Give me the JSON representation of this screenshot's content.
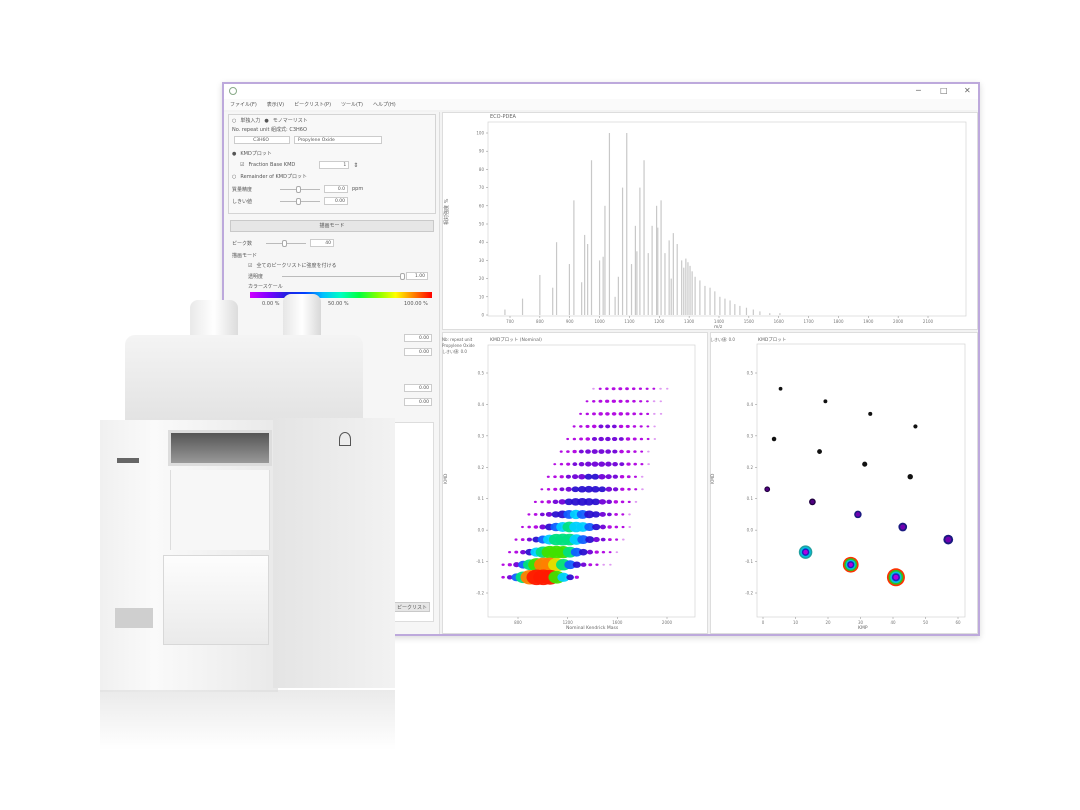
{
  "window": {
    "menu": [
      "ファイル(F)",
      "表示(V)",
      "ピークリスト(P)",
      "ツール(T)",
      "ヘルプ(H)"
    ],
    "controls": {
      "minimize": "─",
      "maximize": "□",
      "close": "✕"
    }
  },
  "left_panel": {
    "input_mode": {
      "option1": "単独入力",
      "option2": "モノマーリスト",
      "selected": "モノマーリスト"
    },
    "monomer_line": "No. repeat unit   組成式: C3H6O",
    "formula_select": "C3H6O",
    "monomer_select": "Propylene Oxide",
    "kmd_plot_radio": "KMDプロット",
    "fraction_base_checkbox": "Fraction Base KMD",
    "fraction_base_checked": true,
    "fraction_value": "1",
    "remainder_radio": "Remainder of KMDプロット",
    "mass_accuracy_label": "質量精度",
    "mass_accuracy_value": "0.0",
    "mass_accuracy_unit": "ppm",
    "threshold_label": "しきい値",
    "threshold_value": "0.00",
    "draw_button": "描画モード",
    "peak_count_label": "ピーク数",
    "peak_count_value": "40",
    "draw_mode_label": "描画モード",
    "all_peaks_checkbox": "全てのピークリストに強度を付ける",
    "transparency_label": "透明度",
    "transparency_value": "1.00",
    "colorscale_label": "カラースケール",
    "colorscale_ticks": [
      "0.00 %",
      "50.00 %",
      "100.00 %"
    ],
    "lower_values": [
      "0.00",
      "0.00",
      "0.00",
      "0.00"
    ],
    "lower_button": "ピークリスト"
  },
  "colors": {
    "window_border": "#bda9dc",
    "bar": "#c8c8c8"
  },
  "chart_data": [
    {
      "type": "bar",
      "title": "ECO-PDEA",
      "xlabel": "m/z",
      "ylabel": "相対強度 %",
      "xlim": [
        700,
        2100
      ],
      "ylim": [
        0,
        100
      ],
      "xticks": [
        700,
        800,
        900,
        1000,
        1100,
        1200,
        1300,
        1400,
        1500,
        1600,
        1700,
        1800,
        1900,
        2000,
        2100
      ],
      "yticks": [
        0,
        10,
        20,
        30,
        40,
        50,
        60,
        70,
        80,
        90,
        100
      ],
      "grid": false,
      "peaks": [
        [
          683,
          3
        ],
        [
          742,
          9
        ],
        [
          800,
          22
        ],
        [
          843,
          15
        ],
        [
          856,
          40
        ],
        [
          899,
          28
        ],
        [
          914,
          63
        ],
        [
          960,
          39
        ],
        [
          973,
          85
        ],
        [
          1012,
          32
        ],
        [
          1018,
          60
        ],
        [
          1033,
          100
        ],
        [
          1063,
          21
        ],
        [
          1077,
          70
        ],
        [
          1091,
          100
        ],
        [
          1107,
          28
        ],
        [
          1120,
          49
        ],
        [
          1135,
          70
        ],
        [
          1149,
          85
        ],
        [
          1163,
          34
        ],
        [
          1176,
          49
        ],
        [
          1191,
          60
        ],
        [
          1206,
          63
        ],
        [
          1219,
          34
        ],
        [
          1233,
          41
        ],
        [
          1247,
          45
        ],
        [
          1260,
          39
        ],
        [
          1275,
          30
        ],
        [
          1289,
          31
        ],
        [
          1303,
          27
        ],
        [
          1320,
          21
        ],
        [
          1336,
          19
        ],
        [
          1353,
          16
        ],
        [
          1370,
          15
        ],
        [
          1386,
          13
        ],
        [
          1403,
          10
        ],
        [
          1420,
          9
        ],
        [
          1437,
          8
        ],
        [
          1453,
          6
        ],
        [
          1470,
          5
        ],
        [
          1492,
          4
        ],
        [
          1515,
          3
        ],
        [
          1537,
          2
        ],
        [
          1570,
          1
        ],
        [
          1604,
          1
        ],
        [
          940,
          18
        ],
        [
          950,
          44
        ],
        [
          1000,
          30
        ],
        [
          1052,
          10
        ],
        [
          1125,
          35
        ],
        [
          1195,
          48
        ],
        [
          1240,
          20
        ],
        [
          1282,
          26
        ],
        [
          1296,
          29
        ],
        [
          1310,
          24
        ]
      ]
    },
    {
      "type": "scatter",
      "title": "KMDプロット (Nominal)",
      "side_labels": [
        "Nb: repeat unit",
        "Propylene Oxide",
        "しきい値: 0.0"
      ],
      "xlabel": "Nominal Kendrick Mass",
      "ylabel": "KMD",
      "xlim": [
        650,
        2100
      ],
      "ylim": [
        -0.25,
        0.55
      ],
      "xticks": [
        800,
        1200,
        1600,
        2000
      ],
      "yticks": [
        0.5,
        0.4,
        0.3,
        0.2,
        0.1,
        0.0,
        -0.1,
        -0.2
      ],
      "mass_step": 54,
      "rows": [
        {
          "kmd": 0.45,
          "start": 1408,
          "intensity": [
            3,
            5,
            8,
            10,
            10,
            9,
            8,
            6,
            5,
            4,
            3,
            2
          ]
        },
        {
          "kmd": 0.41,
          "start": 1356,
          "intensity": [
            4,
            7,
            10,
            12,
            12,
            11,
            10,
            8,
            6,
            4,
            3,
            2
          ]
        },
        {
          "kmd": 0.37,
          "start": 1304,
          "intensity": [
            4,
            7,
            10,
            13,
            14,
            14,
            13,
            11,
            9,
            7,
            5,
            3,
            2
          ]
        },
        {
          "kmd": 0.33,
          "start": 1252,
          "intensity": [
            5,
            8,
            11,
            14,
            16,
            16,
            15,
            13,
            11,
            8,
            6,
            4,
            2
          ]
        },
        {
          "kmd": 0.29,
          "start": 1200,
          "intensity": [
            4,
            7,
            10,
            14,
            17,
            19,
            19,
            18,
            16,
            13,
            10,
            7,
            4,
            2
          ]
        },
        {
          "kmd": 0.25,
          "start": 1148,
          "intensity": [
            5,
            8,
            12,
            16,
            20,
            22,
            22,
            20,
            17,
            14,
            10,
            7,
            4,
            2
          ]
        },
        {
          "kmd": 0.21,
          "start": 1096,
          "intensity": [
            4,
            7,
            11,
            15,
            20,
            24,
            26,
            26,
            24,
            20,
            16,
            12,
            8,
            5,
            3
          ]
        },
        {
          "kmd": 0.17,
          "start": 1044,
          "intensity": [
            5,
            8,
            12,
            17,
            23,
            28,
            31,
            31,
            28,
            23,
            18,
            13,
            9,
            5,
            3
          ]
        },
        {
          "kmd": 0.13,
          "start": 992,
          "intensity": [
            4,
            7,
            11,
            16,
            23,
            30,
            35,
            37,
            35,
            30,
            24,
            18,
            12,
            8,
            5,
            3
          ]
        },
        {
          "kmd": 0.09,
          "start": 940,
          "intensity": [
            5,
            8,
            13,
            20,
            28,
            36,
            42,
            44,
            42,
            36,
            28,
            20,
            13,
            8,
            5,
            3
          ]
        },
        {
          "kmd": 0.05,
          "start": 888,
          "intensity": [
            5,
            9,
            15,
            24,
            34,
            44,
            52,
            55,
            52,
            44,
            34,
            24,
            15,
            9,
            5,
            3
          ]
        },
        {
          "kmd": 0.01,
          "start": 836,
          "intensity": [
            4,
            8,
            14,
            24,
            36,
            50,
            60,
            65,
            64,
            58,
            46,
            34,
            22,
            13,
            8,
            5,
            3
          ]
        },
        {
          "kmd": -0.03,
          "start": 784,
          "intensity": [
            5,
            9,
            17,
            30,
            46,
            60,
            70,
            74,
            72,
            64,
            52,
            38,
            25,
            15,
            9,
            5,
            3
          ]
        },
        {
          "kmd": -0.07,
          "start": 732,
          "intensity": [
            5,
            10,
            20,
            36,
            55,
            70,
            78,
            80,
            76,
            66,
            52,
            36,
            22,
            12,
            7,
            4,
            2
          ]
        },
        {
          "kmd": -0.11,
          "start": 680,
          "intensity": [
            6,
            12,
            25,
            45,
            65,
            82,
            90,
            90,
            84,
            70,
            52,
            34,
            20,
            10,
            6,
            3,
            2
          ]
        },
        {
          "kmd": -0.15,
          "start": 680,
          "intensity": [
            8,
            20,
            45,
            72,
            92,
            100,
            100,
            95,
            80,
            55,
            30,
            12
          ]
        }
      ]
    },
    {
      "type": "scatter",
      "title": "KMDプロット",
      "side_labels": [
        "しきい値: 0.0"
      ],
      "xlabel": "KMP",
      "ylabel": "KMD",
      "xlim": [
        -2,
        62
      ],
      "ylim": [
        -0.25,
        0.55
      ],
      "xticks": [
        0,
        10,
        20,
        30,
        40,
        50,
        60
      ],
      "yticks": [
        0.5,
        0.4,
        0.3,
        0.2,
        0.1,
        0.0,
        -0.1,
        -0.2
      ],
      "points": [
        {
          "x": 5.4,
          "y": 0.45,
          "intensity": 5
        },
        {
          "x": 19.2,
          "y": 0.41,
          "intensity": 6
        },
        {
          "x": 33,
          "y": 0.37,
          "intensity": 7
        },
        {
          "x": 46.9,
          "y": 0.33,
          "intensity": 8
        },
        {
          "x": 3.4,
          "y": 0.29,
          "intensity": 10
        },
        {
          "x": 17.4,
          "y": 0.25,
          "intensity": 12
        },
        {
          "x": 31.3,
          "y": 0.21,
          "intensity": 14
        },
        {
          "x": 45.3,
          "y": 0.17,
          "intensity": 16
        },
        {
          "x": 1.3,
          "y": 0.13,
          "intensity": 18
        },
        {
          "x": 15.2,
          "y": 0.09,
          "intensity": 25
        },
        {
          "x": 29.2,
          "y": 0.05,
          "intensity": 30
        },
        {
          "x": 43,
          "y": 0.01,
          "intensity": 38
        },
        {
          "x": 57,
          "y": -0.03,
          "intensity": 45
        },
        {
          "x": 13.1,
          "y": -0.07,
          "intensity": 70
        },
        {
          "x": 27,
          "y": -0.11,
          "intensity": 85
        },
        {
          "x": 40.9,
          "y": -0.15,
          "intensity": 100
        }
      ]
    }
  ]
}
